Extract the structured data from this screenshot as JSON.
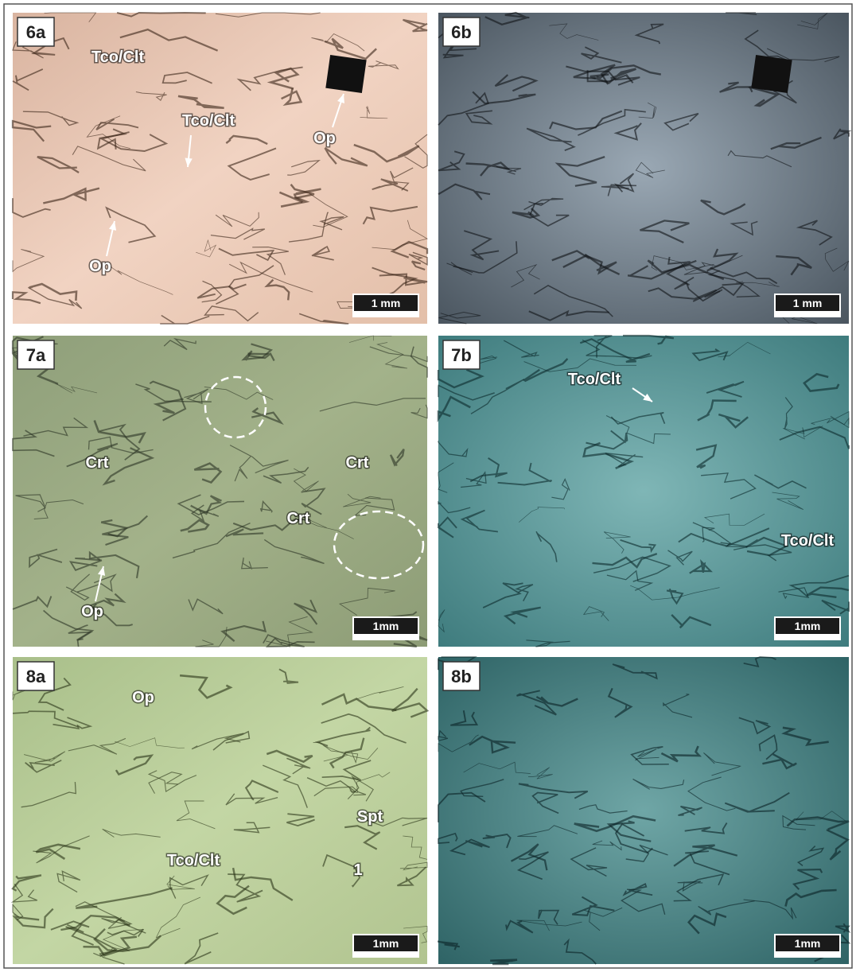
{
  "panels": [
    {
      "label": "6a",
      "scale_bar": "1 mm",
      "annotations": [
        "Tco/Clt",
        "Tco/Clt",
        "Op",
        "Op"
      ]
    },
    {
      "label": "6b",
      "scale_bar": "1 mm",
      "annotations": []
    },
    {
      "label": "7a",
      "scale_bar": "1mm",
      "annotations": [
        "Crt",
        "Crt",
        "Crt",
        "Op"
      ]
    },
    {
      "label": "7b",
      "scale_bar": "1mm",
      "annotations": [
        "Tco/Clt",
        "Tco/Clt"
      ]
    },
    {
      "label": "8a",
      "scale_bar": "1mm",
      "annotations": [
        "Op",
        "Spt",
        "Tco/Clt",
        "1"
      ]
    },
    {
      "label": "8b",
      "scale_bar": "1mm",
      "annotations": []
    }
  ]
}
